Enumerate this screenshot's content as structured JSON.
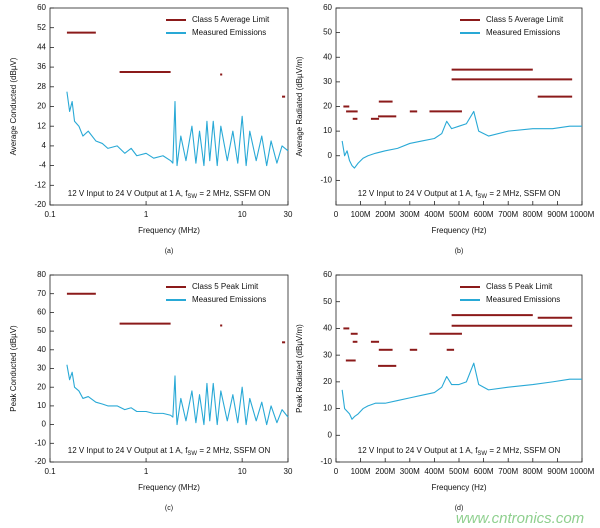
{
  "watermark": "www.cntronics.com",
  "chart_data": [
    {
      "type": "line",
      "ylabel": "Average Conducted (dBµV)",
      "xlabel": "Frequency (MHz)",
      "caption": "(a)",
      "xscale": "log",
      "xlim": [
        0.1,
        30
      ],
      "ylim": [
        -20,
        60
      ],
      "xticks": [
        0.1,
        1,
        10,
        30
      ],
      "yticks": [
        -20,
        -12,
        -4,
        4,
        12,
        20,
        28,
        36,
        44,
        52,
        60
      ],
      "grid": false,
      "legend": "upper right",
      "annotation": [
        "12 V Input to 24 V Output at 1 A, f",
        "SW",
        " = 2 MHz, SSFM ON"
      ],
      "series": [
        {
          "name": "Class 5 Average Limit",
          "color": "#8b1a1a",
          "segments": [
            {
              "x": [
                0.15,
                0.3
              ],
              "y": 50
            },
            {
              "x": [
                0.53,
                1.8
              ],
              "y": 34
            },
            {
              "x": [
                5.9,
                6.2
              ],
              "y": 33
            },
            {
              "x": [
                26,
                28
              ],
              "y": 24
            }
          ]
        },
        {
          "name": "Measured Emissions",
          "color": "#29a9d6",
          "x": [
            0.15,
            0.16,
            0.17,
            0.18,
            0.2,
            0.22,
            0.25,
            0.3,
            0.35,
            0.4,
            0.5,
            0.6,
            0.7,
            0.8,
            1,
            1.2,
            1.5,
            1.8,
            1.9,
            2,
            2.05,
            2.1,
            2.3,
            2.6,
            3,
            3.3,
            3.6,
            4,
            4.3,
            4.6,
            5,
            5.5,
            6,
            7,
            8,
            9,
            10,
            11,
            12,
            14,
            16,
            18,
            20,
            23,
            26,
            30
          ],
          "values": [
            26,
            18,
            22,
            14,
            12,
            8,
            10,
            6,
            5,
            3,
            4,
            1,
            3,
            0,
            1,
            -1,
            0,
            -2,
            -3,
            22,
            6,
            -4,
            8,
            -2,
            12,
            -3,
            10,
            -4,
            14,
            -2,
            14,
            -4,
            12,
            -2,
            10,
            -3,
            16,
            -4,
            10,
            -2,
            8,
            -4,
            6,
            -3,
            4,
            2
          ]
        }
      ]
    },
    {
      "type": "line",
      "ylabel": "Average Radiated (dBµV/m)",
      "xlabel": "Frequency (Hz)",
      "caption": "(b)",
      "xscale": "linear",
      "xlim": [
        0,
        1000000000
      ],
      "ylim": [
        -20,
        60
      ],
      "xticks": [
        0,
        {
          "value": 100000000,
          "label": "100M"
        },
        {
          "value": 200000000,
          "label": "200M"
        },
        {
          "value": 300000000,
          "label": "300M"
        },
        {
          "value": 400000000,
          "label": "400M"
        },
        {
          "value": 500000000,
          "label": "500M"
        },
        {
          "value": 600000000,
          "label": "600M"
        },
        {
          "value": 700000000,
          "label": "700M"
        },
        {
          "value": 800000000,
          "label": "800M"
        },
        {
          "value": 900000000,
          "label": "900M"
        },
        {
          "value": 1000000000,
          "label": "1000M"
        }
      ],
      "yticks": [
        -10,
        0,
        10,
        20,
        30,
        40,
        50,
        60
      ],
      "grid": false,
      "legend": "upper right",
      "annotation": [
        "12 V Input to 24 V Output at 1 A, f",
        "SW",
        " = 2 MHz, SSFM ON"
      ],
      "series": [
        {
          "name": "Class 5 Average Limit",
          "color": "#8b1a1a",
          "segments": [
            {
              "x": [
                30000000,
                54000000
              ],
              "y": 20
            },
            {
              "x": [
                41000000,
                88000000
              ],
              "y": 18
            },
            {
              "x": [
                68000000,
                87000000
              ],
              "y": 15
            },
            {
              "x": [
                142000000,
                175000000
              ],
              "y": 15
            },
            {
              "x": [
                174000000,
                230000000
              ],
              "y": 22
            },
            {
              "x": [
                171000000,
                245000000
              ],
              "y": 16
            },
            {
              "x": [
                300000000,
                330000000
              ],
              "y": 18
            },
            {
              "x": [
                380000000,
                512000000
              ],
              "y": 18
            },
            {
              "x": [
                470000000,
                800000000
              ],
              "y": 35
            },
            {
              "x": [
                470000000,
                960000000
              ],
              "y": 31
            },
            {
              "x": [
                820000000,
                960000000
              ],
              "y": 24
            }
          ]
        },
        {
          "name": "Measured Emissions",
          "color": "#29a9d6",
          "x": [
            25000000,
            35000000,
            45000000,
            55000000,
            65000000,
            75000000,
            90000000,
            110000000,
            130000000,
            160000000,
            200000000,
            250000000,
            300000000,
            350000000,
            400000000,
            430000000,
            450000000,
            470000000,
            500000000,
            530000000,
            560000000,
            580000000,
            620000000,
            700000000,
            800000000,
            880000000,
            950000000,
            1000000000
          ],
          "values": [
            6,
            0,
            2,
            -2,
            -4,
            -5,
            -3,
            -1,
            0,
            1,
            2,
            3,
            5,
            6,
            7,
            9,
            14,
            11,
            12,
            13,
            18,
            10,
            8,
            10,
            11,
            11,
            12,
            12
          ]
        }
      ]
    },
    {
      "type": "line",
      "ylabel": "Peak Conducted (dBµV)",
      "xlabel": "Frequency (MHz)",
      "caption": "(c)",
      "xscale": "log",
      "xlim": [
        0.1,
        30
      ],
      "ylim": [
        -20,
        80
      ],
      "xticks": [
        0.1,
        1,
        10,
        30
      ],
      "yticks": [
        -20,
        -10,
        0,
        10,
        20,
        30,
        40,
        50,
        60,
        70,
        80
      ],
      "grid": false,
      "legend": "upper right",
      "annotation": [
        "12 V Input to 24 V Output at 1 A, f",
        "SW",
        " = 2 MHz, SSFM ON"
      ],
      "series": [
        {
          "name": "Class 5 Peak Limit",
          "color": "#8b1a1a",
          "segments": [
            {
              "x": [
                0.15,
                0.3
              ],
              "y": 70
            },
            {
              "x": [
                0.53,
                1.8
              ],
              "y": 54
            },
            {
              "x": [
                5.9,
                6.2
              ],
              "y": 53
            },
            {
              "x": [
                26,
                28
              ],
              "y": 44
            }
          ]
        },
        {
          "name": "Measured Emissions",
          "color": "#29a9d6",
          "x": [
            0.15,
            0.16,
            0.17,
            0.18,
            0.2,
            0.22,
            0.25,
            0.3,
            0.35,
            0.4,
            0.5,
            0.6,
            0.7,
            0.8,
            1,
            1.2,
            1.5,
            1.8,
            1.9,
            2,
            2.05,
            2.1,
            2.3,
            2.6,
            3,
            3.3,
            3.6,
            4,
            4.3,
            4.6,
            5,
            5.5,
            6,
            7,
            8,
            9,
            10,
            11,
            12,
            14,
            16,
            18,
            20,
            23,
            26,
            30
          ],
          "values": [
            32,
            24,
            28,
            20,
            18,
            14,
            15,
            12,
            11,
            10,
            10,
            8,
            9,
            7,
            7,
            6,
            6,
            5,
            4,
            26,
            10,
            0,
            14,
            2,
            18,
            1,
            16,
            0,
            22,
            2,
            22,
            0,
            18,
            2,
            16,
            1,
            20,
            0,
            14,
            2,
            12,
            0,
            10,
            1,
            8,
            4
          ]
        }
      ]
    },
    {
      "type": "line",
      "ylabel": "Peak Radiated (dBµV/m)",
      "xlabel": "Frequency (Hz)",
      "caption": "(d)",
      "xscale": "linear",
      "xlim": [
        0,
        1000000000
      ],
      "ylim": [
        -10,
        60
      ],
      "xticks": [
        0,
        {
          "value": 100000000,
          "label": "100M"
        },
        {
          "value": 200000000,
          "label": "200M"
        },
        {
          "value": 300000000,
          "label": "300M"
        },
        {
          "value": 400000000,
          "label": "400M"
        },
        {
          "value": 500000000,
          "label": "500M"
        },
        {
          "value": 600000000,
          "label": "600M"
        },
        {
          "value": 700000000,
          "label": "700M"
        },
        {
          "value": 800000000,
          "label": "800M"
        },
        {
          "value": 900000000,
          "label": "900M"
        },
        {
          "value": 1000000000,
          "label": "1000M"
        }
      ],
      "yticks": [
        -10,
        0,
        10,
        20,
        30,
        40,
        50,
        60
      ],
      "grid": false,
      "legend": "upper right",
      "annotation": [
        "12 V Input to 24 V Output at 1 A, f",
        "SW",
        " = 2 MHz, SSFM ON"
      ],
      "series": [
        {
          "name": "Class 5 Peak Limit",
          "color": "#8b1a1a",
          "segments": [
            {
              "x": [
                30000000,
                54000000
              ],
              "y": 40
            },
            {
              "x": [
                60000000,
                88000000
              ],
              "y": 38
            },
            {
              "x": [
                68000000,
                87000000
              ],
              "y": 35
            },
            {
              "x": [
                40000000,
                80000000
              ],
              "y": 28
            },
            {
              "x": [
                142000000,
                175000000
              ],
              "y": 35
            },
            {
              "x": [
                174000000,
                230000000
              ],
              "y": 32
            },
            {
              "x": [
                171000000,
                245000000
              ],
              "y": 26
            },
            {
              "x": [
                300000000,
                330000000
              ],
              "y": 32
            },
            {
              "x": [
                380000000,
                512000000
              ],
              "y": 38
            },
            {
              "x": [
                450000000,
                480000000
              ],
              "y": 32
            },
            {
              "x": [
                470000000,
                800000000
              ],
              "y": 45
            },
            {
              "x": [
                470000000,
                960000000
              ],
              "y": 41
            },
            {
              "x": [
                820000000,
                960000000
              ],
              "y": 44
            }
          ]
        },
        {
          "name": "Measured Emissions",
          "color": "#29a9d6",
          "x": [
            25000000,
            35000000,
            45000000,
            55000000,
            65000000,
            75000000,
            90000000,
            110000000,
            130000000,
            160000000,
            200000000,
            250000000,
            300000000,
            350000000,
            400000000,
            430000000,
            450000000,
            470000000,
            500000000,
            530000000,
            560000000,
            580000000,
            620000000,
            700000000,
            800000000,
            880000000,
            950000000,
            1000000000
          ],
          "values": [
            17,
            10,
            9,
            8,
            6,
            7,
            8,
            10,
            11,
            12,
            12,
            13,
            14,
            15,
            16,
            18,
            22,
            19,
            19,
            20,
            27,
            19,
            17,
            18,
            19,
            20,
            21,
            21
          ]
        }
      ]
    }
  ]
}
